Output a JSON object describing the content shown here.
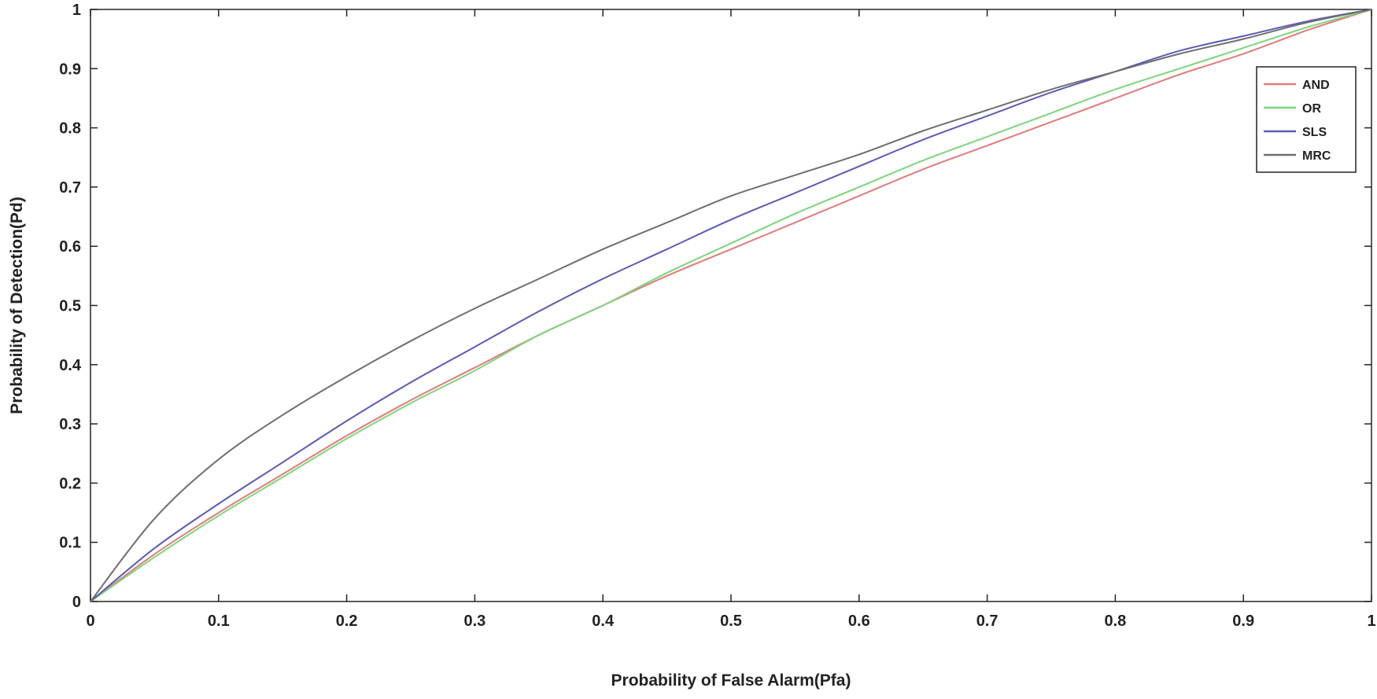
{
  "chart_data": {
    "type": "line",
    "title": "",
    "xlabel": "Probability of False Alarm(Pfa)",
    "ylabel": "Probability of Detection(Pd)",
    "xlim": [
      0,
      1
    ],
    "ylim": [
      0,
      1
    ],
    "grid": false,
    "legend_position": "top-right",
    "x_ticks": [
      "0",
      "0.1",
      "0.2",
      "0.3",
      "0.4",
      "0.5",
      "0.6",
      "0.7",
      "0.8",
      "0.9",
      "1"
    ],
    "y_ticks": [
      "0",
      "0.1",
      "0.2",
      "0.3",
      "0.4",
      "0.5",
      "0.6",
      "0.7",
      "0.8",
      "0.9",
      "1"
    ],
    "x": [
      0,
      0.05,
      0.1,
      0.15,
      0.2,
      0.25,
      0.3,
      0.35,
      0.4,
      0.45,
      0.5,
      0.55,
      0.6,
      0.65,
      0.7,
      0.75,
      0.8,
      0.85,
      0.9,
      0.95,
      1
    ],
    "series": [
      {
        "name": "AND",
        "color": "#e07b7b",
        "values": [
          0,
          0.08,
          0.15,
          0.215,
          0.28,
          0.34,
          0.395,
          0.45,
          0.5,
          0.55,
          0.595,
          0.64,
          0.685,
          0.73,
          0.77,
          0.81,
          0.85,
          0.89,
          0.925,
          0.965,
          1
        ]
      },
      {
        "name": "OR",
        "color": "#7bd67b",
        "values": [
          0,
          0.075,
          0.145,
          0.21,
          0.275,
          0.335,
          0.39,
          0.45,
          0.5,
          0.555,
          0.605,
          0.655,
          0.7,
          0.745,
          0.785,
          0.825,
          0.865,
          0.9,
          0.935,
          0.97,
          1
        ]
      },
      {
        "name": "SLS",
        "color": "#5a5ab8",
        "values": [
          0,
          0.09,
          0.165,
          0.235,
          0.305,
          0.37,
          0.43,
          0.49,
          0.545,
          0.595,
          0.645,
          0.69,
          0.735,
          0.78,
          0.82,
          0.86,
          0.895,
          0.93,
          0.955,
          0.98,
          1
        ]
      },
      {
        "name": "MRC",
        "color": "#6e6e6e",
        "values": [
          0,
          0.14,
          0.24,
          0.315,
          0.38,
          0.44,
          0.495,
          0.545,
          0.595,
          0.64,
          0.685,
          0.72,
          0.755,
          0.795,
          0.83,
          0.865,
          0.895,
          0.925,
          0.95,
          0.978,
          1
        ]
      }
    ]
  }
}
